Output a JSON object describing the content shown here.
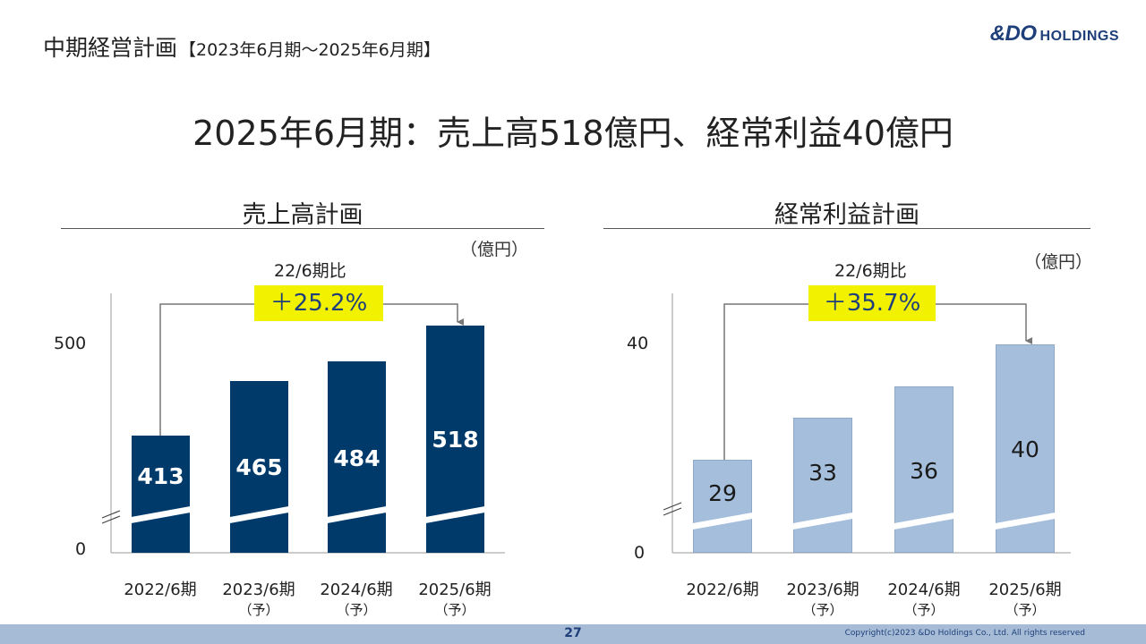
{
  "header": {
    "title": "中期経営計画",
    "subtitle": "【2023年6月期～2025年6月期】",
    "logo_big": "&DO",
    "logo_small": "HOLDINGS"
  },
  "headline": "2025年6月期：売上高518億円、経常利益40億円",
  "sales_panel": {
    "title": "売上高計画",
    "unit": "（億円）",
    "comparison_label": "22/6期比",
    "comparison_value": "＋25.2%",
    "y_ticks": [
      "500",
      "0"
    ]
  },
  "profit_panel": {
    "title": "経常利益計画",
    "unit": "（億円）",
    "comparison_label": "22/6期比",
    "comparison_value": "＋35.7%",
    "y_ticks": [
      "40",
      "0"
    ]
  },
  "chart_data": [
    {
      "type": "bar",
      "title": "売上高計画",
      "categories": [
        "2022/6期",
        "2023/6期（予）",
        "2024/6期（予）",
        "2025/6期（予）"
      ],
      "values": [
        413,
        465,
        484,
        518
      ],
      "y_axis_break": true,
      "ylabel": "（億円）",
      "color": "#003a6b"
    },
    {
      "type": "bar",
      "title": "経常利益計画",
      "categories": [
        "2022/6期",
        "2023/6期（予）",
        "2024/6期（予）",
        "2025/6期（予）"
      ],
      "values": [
        29,
        33,
        36,
        40
      ],
      "y_axis_break": true,
      "ylabel": "（億円）",
      "color": "#a4bedc"
    }
  ],
  "categories_display": [
    {
      "year": "2022/6期",
      "note": ""
    },
    {
      "year": "2023/6期",
      "note": "（予）"
    },
    {
      "year": "2024/6期",
      "note": "（予）"
    },
    {
      "year": "2025/6期",
      "note": "（予）"
    }
  ],
  "values_display": {
    "sales": [
      "413",
      "465",
      "484",
      "518"
    ],
    "profit": [
      "29",
      "33",
      "36",
      "40"
    ]
  },
  "footer": {
    "page_number": "27",
    "copyright": "Copyright(c)2023 &Do Holdings Co., Ltd. All rights reserved"
  },
  "colors": {
    "navy": "#003a6b",
    "light_blue": "#a4bedc",
    "highlight_yellow": "#f2f200",
    "footer_bar": "#a6bcd6"
  }
}
